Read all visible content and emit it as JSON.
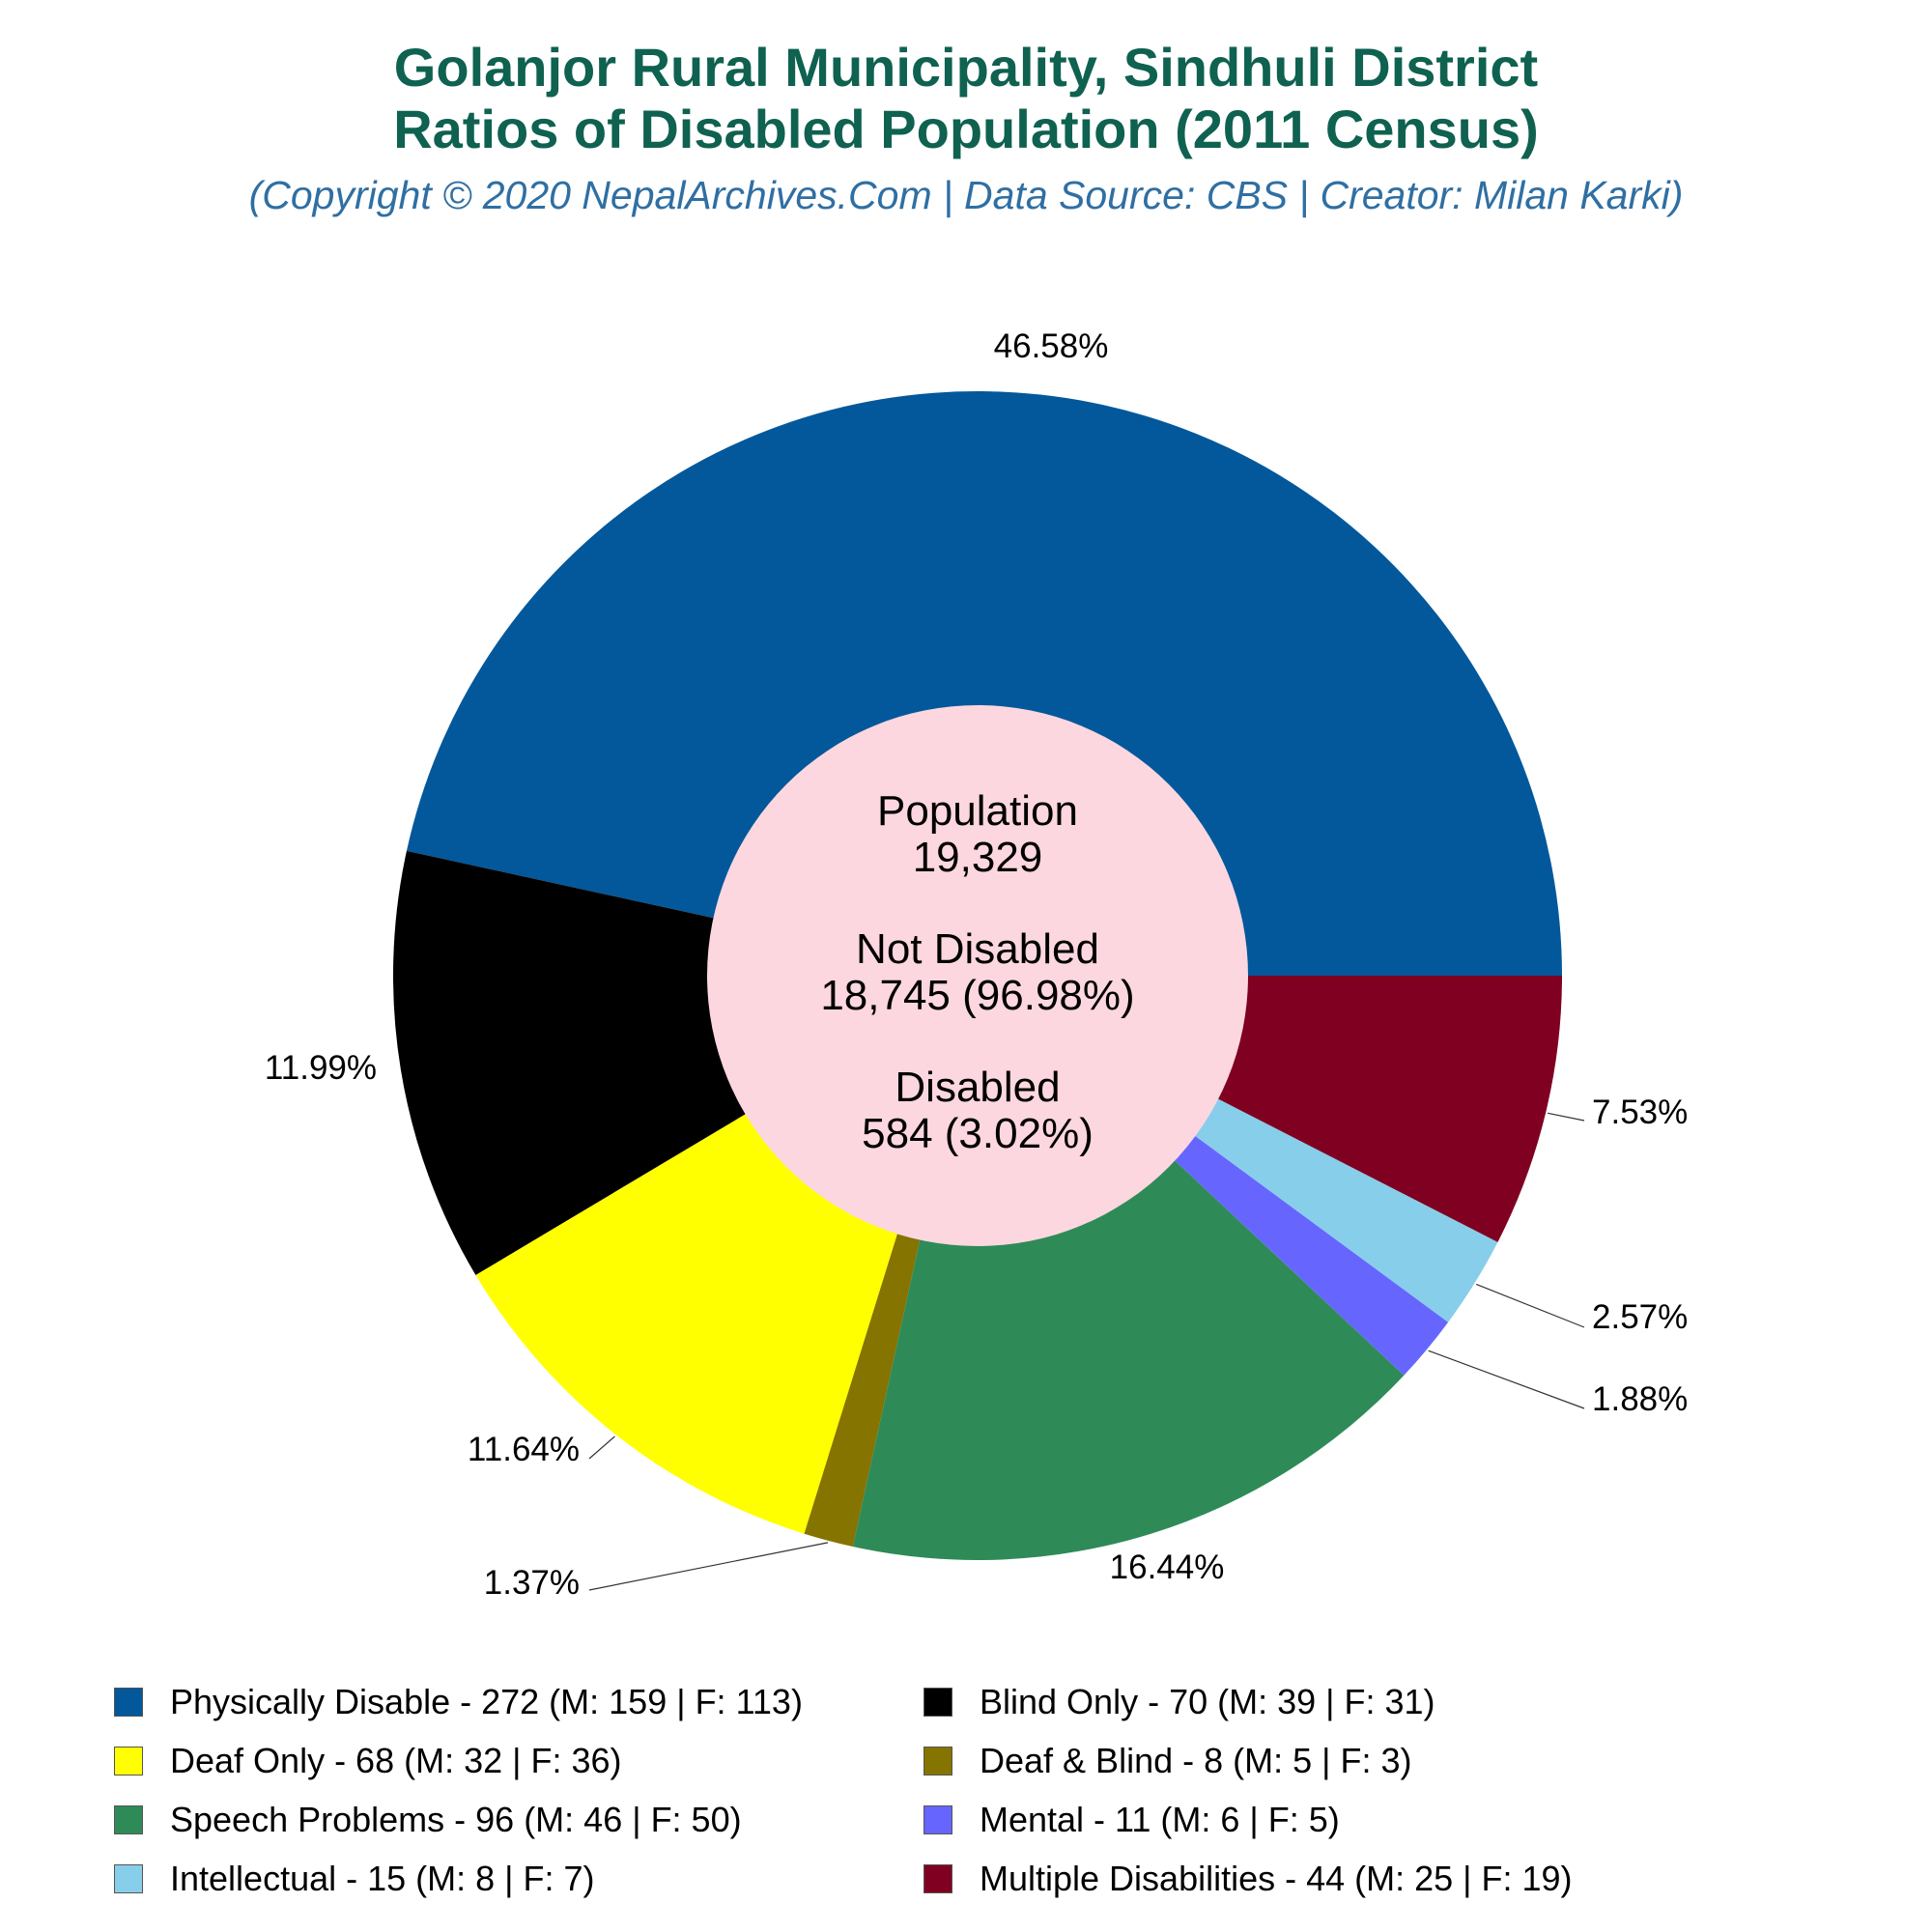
{
  "titles": {
    "line1": "Golanjor Rural Municipality, Sindhuli District",
    "line2": "Ratios of Disabled Population (2011 Census)",
    "subtitle": "(Copyright © 2020 NepalArchives.Com | Data Source: CBS | Creator: Milan Karki)"
  },
  "center": {
    "population_label": "Population",
    "population_value": "19,329",
    "not_disabled_label": "Not Disabled",
    "not_disabled_value": "18,745 (96.98%)",
    "disabled_label": "Disabled",
    "disabled_value": "584 (3.02%)",
    "color": "#fcd7df"
  },
  "legend": [
    {
      "label": "Physically Disable - 272 (M: 159 | F: 113)",
      "color": "#02589b"
    },
    {
      "label": "Blind Only - 70 (M: 39 | F: 31)",
      "color": "#000000"
    },
    {
      "label": "Deaf Only - 68 (M: 32 | F: 36)",
      "color": "#ffff00"
    },
    {
      "label": "Deaf & Blind - 8 (M: 5 | F: 3)",
      "color": "#857400"
    },
    {
      "label": "Speech Problems - 96 (M: 46 | F: 50)",
      "color": "#2e8b57"
    },
    {
      "label": "Mental - 11 (M: 6 | F: 5)",
      "color": "#6666ff"
    },
    {
      "label": "Intellectual - 15 (M: 8 | F: 7)",
      "color": "#87ceeb"
    },
    {
      "label": "Multiple Disabilities - 44 (M: 25 | F: 19)",
      "color": "#7f0020"
    }
  ],
  "chart_data": {
    "type": "pie",
    "title": "Golanjor Rural Municipality, Sindhuli District Ratios of Disabled Population (2011 Census)",
    "categories": [
      "Physically Disable",
      "Blind Only",
      "Deaf Only",
      "Deaf & Blind",
      "Speech Problems",
      "Mental",
      "Intellectual",
      "Multiple Disabilities"
    ],
    "values": [
      272,
      70,
      68,
      8,
      96,
      11,
      15,
      44
    ],
    "male": [
      159,
      39,
      32,
      5,
      46,
      6,
      8,
      25
    ],
    "female": [
      113,
      31,
      36,
      3,
      50,
      5,
      7,
      19
    ],
    "percent_labels": [
      "46.58%",
      "11.99%",
      "11.64%",
      "1.37%",
      "16.44%",
      "1.88%",
      "2.57%",
      "7.53%"
    ],
    "colors": [
      "#02589b",
      "#000000",
      "#ffff00",
      "#857400",
      "#2e8b57",
      "#6666ff",
      "#87ceeb",
      "#7f0020"
    ],
    "start_angle": "3 o'clock",
    "direction": "counterclockwise",
    "legend_position": "bottom"
  }
}
